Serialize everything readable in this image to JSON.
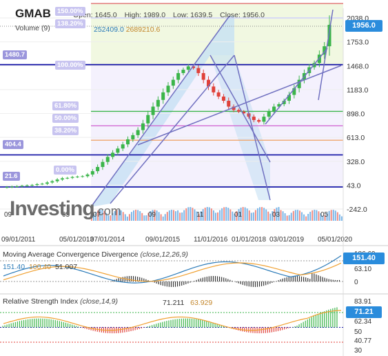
{
  "header": {
    "symbol": "GMAB",
    "open": "Open: 1645.0",
    "high": "High: 1989.0",
    "low": "Low: 1639.5",
    "close": "Close: 1956.0",
    "volume_label": "Volume (9)",
    "volume_a": "252409.0",
    "volume_b": "2689210.6"
  },
  "watermark": {
    "main": "Investing",
    "suffix": ".com"
  },
  "price_tag": "1956.0",
  "level_labels": {
    "r1480": "1480.7",
    "r404": "404.4",
    "r21": "21.6"
  },
  "fib_labels": {
    "f150": "150.00%",
    "f138": "138.20%",
    "f100": "100.00%",
    "f618": "61.80%",
    "f50": "50.00%",
    "f382": "38.20%",
    "f0": "0.00%"
  },
  "macd": {
    "title": "Moving Average Convergence Divergence",
    "params": "(close,12,26,9)",
    "v1": "151.40",
    "v2": "100.40",
    "v3": "51.007",
    "axis_top": "186.69",
    "axis_mid": "63.10",
    "axis_low": "0",
    "tag": "151.40"
  },
  "rsi": {
    "title": "Relative Strength Index",
    "params": "(close,14,9)",
    "v1": "71.211",
    "v2": "63.929",
    "axis": [
      "83.91",
      "71.21",
      "62.34",
      "50",
      "40.77",
      "30"
    ],
    "tag": "71.21"
  },
  "colors": {
    "blue_line": "#1a1aa8",
    "fib_purple": "#a79ae0",
    "green": "#3bb54a",
    "red": "#e0413a",
    "macd_line": "#2a7ab8",
    "signal_line": "#f0a030",
    "channel": "#7070c0"
  },
  "chart_data": {
    "type": "candlestick",
    "x_tick_labels_top_row": [
      "09",
      "05",
      "07",
      "09",
      "11",
      "01",
      "03",
      "05"
    ],
    "x_tick_labels_bottom_row": [
      "09/01/2011",
      "05/01/2013",
      "07/01/2014",
      "09/01/2015",
      "11/01/2016",
      "01/01/2018",
      "03/01/2019",
      "05/01/2020"
    ],
    "y_tick_labels": [
      "2038.0",
      "1753.0",
      "1468.0",
      "1183.0",
      "898.0",
      "613.0",
      "328.0",
      "43.0",
      "-242.0"
    ],
    "ylim": [
      -242,
      2038
    ],
    "horizontal_levels": [
      1480.7,
      404.4,
      21.6
    ],
    "fib_levels_pct": [
      0,
      38.2,
      50,
      61.8,
      100,
      138.2,
      150
    ],
    "candles_close_approx": [
      20,
      25,
      30,
      35,
      40,
      45,
      55,
      60,
      75,
      90,
      110,
      125,
      130,
      140,
      145,
      150,
      170,
      210,
      260,
      320,
      380,
      430,
      480,
      530,
      590,
      640,
      700,
      780,
      880,
      980,
      1060,
      1150,
      1230,
      1300,
      1380,
      1420,
      1460,
      1440,
      1380,
      1300,
      1220,
      1150,
      1100,
      1050,
      980,
      940,
      920,
      900,
      860,
      820,
      800,
      860,
      920,
      980,
      1010,
      1050,
      1120,
      1200,
      1300,
      1380,
      1450,
      1500,
      1600,
      1700,
      1956
    ],
    "last": {
      "open": 1645.0,
      "high": 1989.0,
      "low": 1639.5,
      "close": 1956.0
    }
  }
}
